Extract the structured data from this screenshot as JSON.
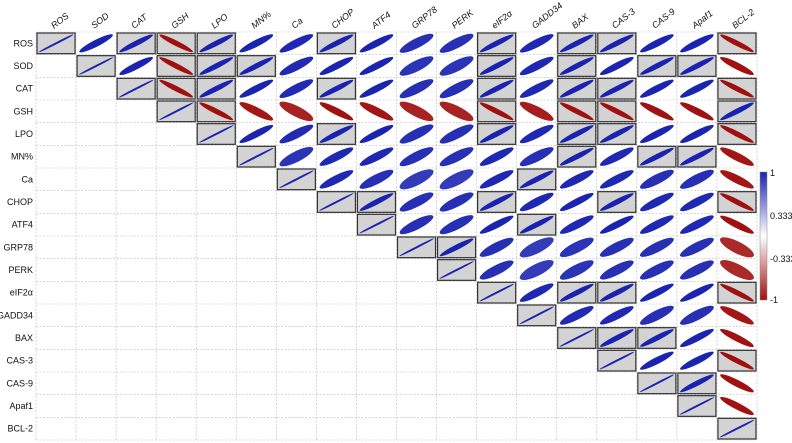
{
  "chart_data": {
    "type": "heatmap",
    "title": "",
    "variables": [
      "ROS",
      "SOD",
      "CAT",
      "GSH",
      "LPO",
      "MN%",
      "Ca",
      "CHOP",
      "ATF4",
      "GRP78",
      "PERK",
      "eIF2α",
      "GADD34",
      "BAX",
      "CAS-3",
      "CAS-9",
      "Apaf1",
      "BCL-2"
    ],
    "cells": [
      {
        "row": "ROS",
        "col": "ROS",
        "r": 1,
        "boxed": true
      },
      {
        "row": "ROS",
        "col": "SOD",
        "r": 0.95,
        "boxed": false
      },
      {
        "row": "ROS",
        "col": "CAT",
        "r": 0.97,
        "boxed": true
      },
      {
        "row": "ROS",
        "col": "GSH",
        "r": -0.97,
        "boxed": true
      },
      {
        "row": "ROS",
        "col": "LPO",
        "r": 0.97,
        "boxed": true
      },
      {
        "row": "ROS",
        "col": "MN%",
        "r": 0.95,
        "boxed": false
      },
      {
        "row": "ROS",
        "col": "Ca",
        "r": 0.93,
        "boxed": false
      },
      {
        "row": "ROS",
        "col": "CHOP",
        "r": 0.97,
        "boxed": true
      },
      {
        "row": "ROS",
        "col": "ATF4",
        "r": 0.95,
        "boxed": false
      },
      {
        "row": "ROS",
        "col": "GRP78",
        "r": 0.9,
        "boxed": false
      },
      {
        "row": "ROS",
        "col": "PERK",
        "r": 0.9,
        "boxed": false
      },
      {
        "row": "ROS",
        "col": "eIF2α",
        "r": 0.97,
        "boxed": true
      },
      {
        "row": "ROS",
        "col": "GADD34",
        "r": 0.93,
        "boxed": false
      },
      {
        "row": "ROS",
        "col": "BAX",
        "r": 0.97,
        "boxed": true
      },
      {
        "row": "ROS",
        "col": "CAS-3",
        "r": 0.97,
        "boxed": true
      },
      {
        "row": "ROS",
        "col": "CAS-9",
        "r": 0.95,
        "boxed": false
      },
      {
        "row": "ROS",
        "col": "Apaf1",
        "r": 0.95,
        "boxed": false
      },
      {
        "row": "ROS",
        "col": "BCL-2",
        "r": -0.97,
        "boxed": true
      },
      {
        "row": "SOD",
        "col": "SOD",
        "r": 1,
        "boxed": true
      },
      {
        "row": "SOD",
        "col": "CAT",
        "r": 0.95,
        "boxed": false
      },
      {
        "row": "SOD",
        "col": "GSH",
        "r": -0.97,
        "boxed": true
      },
      {
        "row": "SOD",
        "col": "LPO",
        "r": 0.97,
        "boxed": true
      },
      {
        "row": "SOD",
        "col": "MN%",
        "r": 0.97,
        "boxed": true
      },
      {
        "row": "SOD",
        "col": "Ca",
        "r": 0.92,
        "boxed": false
      },
      {
        "row": "SOD",
        "col": "CHOP",
        "r": 0.95,
        "boxed": false
      },
      {
        "row": "SOD",
        "col": "ATF4",
        "r": 0.95,
        "boxed": false
      },
      {
        "row": "SOD",
        "col": "GRP78",
        "r": 0.88,
        "boxed": false
      },
      {
        "row": "SOD",
        "col": "PERK",
        "r": 0.88,
        "boxed": false
      },
      {
        "row": "SOD",
        "col": "eIF2α",
        "r": 0.97,
        "boxed": true
      },
      {
        "row": "SOD",
        "col": "GADD34",
        "r": 0.93,
        "boxed": false
      },
      {
        "row": "SOD",
        "col": "BAX",
        "r": 0.97,
        "boxed": true
      },
      {
        "row": "SOD",
        "col": "CAS-3",
        "r": 0.95,
        "boxed": false
      },
      {
        "row": "SOD",
        "col": "CAS-9",
        "r": 0.97,
        "boxed": true
      },
      {
        "row": "SOD",
        "col": "Apaf1",
        "r": 0.97,
        "boxed": true
      },
      {
        "row": "SOD",
        "col": "BCL-2",
        "r": -0.95,
        "boxed": false
      },
      {
        "row": "CAT",
        "col": "CAT",
        "r": 1,
        "boxed": true
      },
      {
        "row": "CAT",
        "col": "GSH",
        "r": -0.97,
        "boxed": true
      },
      {
        "row": "CAT",
        "col": "LPO",
        "r": 0.97,
        "boxed": true
      },
      {
        "row": "CAT",
        "col": "MN%",
        "r": 0.95,
        "boxed": false
      },
      {
        "row": "CAT",
        "col": "Ca",
        "r": 0.92,
        "boxed": false
      },
      {
        "row": "CAT",
        "col": "CHOP",
        "r": 0.97,
        "boxed": true
      },
      {
        "row": "CAT",
        "col": "ATF4",
        "r": 0.95,
        "boxed": false
      },
      {
        "row": "CAT",
        "col": "GRP78",
        "r": 0.9,
        "boxed": false
      },
      {
        "row": "CAT",
        "col": "PERK",
        "r": 0.9,
        "boxed": false
      },
      {
        "row": "CAT",
        "col": "eIF2α",
        "r": 0.97,
        "boxed": true
      },
      {
        "row": "CAT",
        "col": "GADD34",
        "r": 0.93,
        "boxed": false
      },
      {
        "row": "CAT",
        "col": "BAX",
        "r": 0.97,
        "boxed": true
      },
      {
        "row": "CAT",
        "col": "CAS-3",
        "r": 0.97,
        "boxed": true
      },
      {
        "row": "CAT",
        "col": "CAS-9",
        "r": 0.95,
        "boxed": false
      },
      {
        "row": "CAT",
        "col": "Apaf1",
        "r": 0.95,
        "boxed": false
      },
      {
        "row": "CAT",
        "col": "BCL-2",
        "r": -0.97,
        "boxed": true
      },
      {
        "row": "GSH",
        "col": "GSH",
        "r": 1,
        "boxed": true
      },
      {
        "row": "GSH",
        "col": "LPO",
        "r": -0.97,
        "boxed": true
      },
      {
        "row": "GSH",
        "col": "MN%",
        "r": -0.93,
        "boxed": false
      },
      {
        "row": "GSH",
        "col": "Ca",
        "r": -0.88,
        "boxed": false
      },
      {
        "row": "GSH",
        "col": "CHOP",
        "r": -0.95,
        "boxed": false
      },
      {
        "row": "GSH",
        "col": "ATF4",
        "r": -0.93,
        "boxed": false
      },
      {
        "row": "GSH",
        "col": "GRP78",
        "r": -0.88,
        "boxed": false
      },
      {
        "row": "GSH",
        "col": "PERK",
        "r": -0.88,
        "boxed": false
      },
      {
        "row": "GSH",
        "col": "eIF2α",
        "r": -0.97,
        "boxed": true
      },
      {
        "row": "GSH",
        "col": "GADD34",
        "r": -0.9,
        "boxed": false
      },
      {
        "row": "GSH",
        "col": "BAX",
        "r": -0.97,
        "boxed": true
      },
      {
        "row": "GSH",
        "col": "CAS-3",
        "r": -0.97,
        "boxed": true
      },
      {
        "row": "GSH",
        "col": "CAS-9",
        "r": -0.95,
        "boxed": false
      },
      {
        "row": "GSH",
        "col": "Apaf1",
        "r": -0.95,
        "boxed": false
      },
      {
        "row": "GSH",
        "col": "BCL-2",
        "r": 0.97,
        "boxed": true
      },
      {
        "row": "LPO",
        "col": "LPO",
        "r": 1,
        "boxed": true
      },
      {
        "row": "LPO",
        "col": "MN%",
        "r": 0.95,
        "boxed": false
      },
      {
        "row": "LPO",
        "col": "Ca",
        "r": 0.92,
        "boxed": false
      },
      {
        "row": "LPO",
        "col": "CHOP",
        "r": 0.97,
        "boxed": true
      },
      {
        "row": "LPO",
        "col": "ATF4",
        "r": 0.95,
        "boxed": false
      },
      {
        "row": "LPO",
        "col": "GRP78",
        "r": 0.9,
        "boxed": false
      },
      {
        "row": "LPO",
        "col": "PERK",
        "r": 0.9,
        "boxed": false
      },
      {
        "row": "LPO",
        "col": "eIF2α",
        "r": 0.97,
        "boxed": true
      },
      {
        "row": "LPO",
        "col": "GADD34",
        "r": 0.93,
        "boxed": false
      },
      {
        "row": "LPO",
        "col": "BAX",
        "r": 0.97,
        "boxed": true
      },
      {
        "row": "LPO",
        "col": "CAS-3",
        "r": 0.97,
        "boxed": true
      },
      {
        "row": "LPO",
        "col": "CAS-9",
        "r": 0.95,
        "boxed": false
      },
      {
        "row": "LPO",
        "col": "Apaf1",
        "r": 0.95,
        "boxed": false
      },
      {
        "row": "LPO",
        "col": "BCL-2",
        "r": -0.97,
        "boxed": true
      },
      {
        "row": "MN%",
        "col": "MN%",
        "r": 1,
        "boxed": true
      },
      {
        "row": "MN%",
        "col": "Ca",
        "r": 0.88,
        "boxed": false
      },
      {
        "row": "MN%",
        "col": "CHOP",
        "r": 0.93,
        "boxed": false
      },
      {
        "row": "MN%",
        "col": "ATF4",
        "r": 0.93,
        "boxed": false
      },
      {
        "row": "MN%",
        "col": "GRP78",
        "r": 0.9,
        "boxed": false
      },
      {
        "row": "MN%",
        "col": "PERK",
        "r": 0.9,
        "boxed": false
      },
      {
        "row": "MN%",
        "col": "eIF2α",
        "r": 0.93,
        "boxed": false
      },
      {
        "row": "MN%",
        "col": "GADD34",
        "r": 0.9,
        "boxed": false
      },
      {
        "row": "MN%",
        "col": "BAX",
        "r": 0.97,
        "boxed": true
      },
      {
        "row": "MN%",
        "col": "CAS-3",
        "r": 0.93,
        "boxed": false
      },
      {
        "row": "MN%",
        "col": "CAS-9",
        "r": 0.97,
        "boxed": true
      },
      {
        "row": "MN%",
        "col": "Apaf1",
        "r": 0.97,
        "boxed": true
      },
      {
        "row": "MN%",
        "col": "BCL-2",
        "r": -0.93,
        "boxed": false
      },
      {
        "row": "Ca",
        "col": "Ca",
        "r": 1,
        "boxed": true
      },
      {
        "row": "Ca",
        "col": "CHOP",
        "r": 0.93,
        "boxed": false
      },
      {
        "row": "Ca",
        "col": "ATF4",
        "r": 0.9,
        "boxed": false
      },
      {
        "row": "Ca",
        "col": "GRP78",
        "r": 0.85,
        "boxed": false
      },
      {
        "row": "Ca",
        "col": "PERK",
        "r": 0.85,
        "boxed": false
      },
      {
        "row": "Ca",
        "col": "eIF2α",
        "r": 0.93,
        "boxed": false
      },
      {
        "row": "Ca",
        "col": "GADD34",
        "r": 0.97,
        "boxed": true
      },
      {
        "row": "Ca",
        "col": "BAX",
        "r": 0.93,
        "boxed": false
      },
      {
        "row": "Ca",
        "col": "CAS-3",
        "r": 0.93,
        "boxed": false
      },
      {
        "row": "Ca",
        "col": "CAS-9",
        "r": 0.9,
        "boxed": false
      },
      {
        "row": "Ca",
        "col": "Apaf1",
        "r": 0.9,
        "boxed": false
      },
      {
        "row": "Ca",
        "col": "BCL-2",
        "r": -0.93,
        "boxed": false
      },
      {
        "row": "CHOP",
        "col": "CHOP",
        "r": 1,
        "boxed": true
      },
      {
        "row": "CHOP",
        "col": "ATF4",
        "r": 0.97,
        "boxed": true
      },
      {
        "row": "CHOP",
        "col": "GRP78",
        "r": 0.9,
        "boxed": false
      },
      {
        "row": "CHOP",
        "col": "PERK",
        "r": 0.9,
        "boxed": false
      },
      {
        "row": "CHOP",
        "col": "eIF2α",
        "r": 0.97,
        "boxed": true
      },
      {
        "row": "CHOP",
        "col": "GADD34",
        "r": 0.93,
        "boxed": false
      },
      {
        "row": "CHOP",
        "col": "BAX",
        "r": 0.95,
        "boxed": false
      },
      {
        "row": "CHOP",
        "col": "CAS-3",
        "r": 0.97,
        "boxed": true
      },
      {
        "row": "CHOP",
        "col": "CAS-9",
        "r": 0.93,
        "boxed": false
      },
      {
        "row": "CHOP",
        "col": "Apaf1",
        "r": 0.93,
        "boxed": false
      },
      {
        "row": "CHOP",
        "col": "BCL-2",
        "r": -0.97,
        "boxed": true
      },
      {
        "row": "ATF4",
        "col": "ATF4",
        "r": 1,
        "boxed": true
      },
      {
        "row": "ATF4",
        "col": "GRP78",
        "r": 0.9,
        "boxed": false
      },
      {
        "row": "ATF4",
        "col": "PERK",
        "r": 0.9,
        "boxed": false
      },
      {
        "row": "ATF4",
        "col": "eIF2α",
        "r": 0.95,
        "boxed": false
      },
      {
        "row": "ATF4",
        "col": "GADD34",
        "r": 0.97,
        "boxed": true
      },
      {
        "row": "ATF4",
        "col": "BAX",
        "r": 0.93,
        "boxed": false
      },
      {
        "row": "ATF4",
        "col": "CAS-3",
        "r": 0.95,
        "boxed": false
      },
      {
        "row": "ATF4",
        "col": "CAS-9",
        "r": 0.93,
        "boxed": false
      },
      {
        "row": "ATF4",
        "col": "Apaf1",
        "r": 0.93,
        "boxed": false
      },
      {
        "row": "ATF4",
        "col": "BCL-2",
        "r": -0.95,
        "boxed": false
      },
      {
        "row": "GRP78",
        "col": "GRP78",
        "r": 1,
        "boxed": true
      },
      {
        "row": "GRP78",
        "col": "PERK",
        "r": 0.97,
        "boxed": true
      },
      {
        "row": "GRP78",
        "col": "eIF2α",
        "r": 0.9,
        "boxed": false
      },
      {
        "row": "GRP78",
        "col": "GADD34",
        "r": 0.85,
        "boxed": false
      },
      {
        "row": "GRP78",
        "col": "BAX",
        "r": 0.88,
        "boxed": false
      },
      {
        "row": "GRP78",
        "col": "CAS-3",
        "r": 0.9,
        "boxed": false
      },
      {
        "row": "GRP78",
        "col": "CAS-9",
        "r": 0.9,
        "boxed": false
      },
      {
        "row": "GRP78",
        "col": "Apaf1",
        "r": 0.9,
        "boxed": false
      },
      {
        "row": "GRP78",
        "col": "BCL-2",
        "r": -0.85,
        "boxed": false
      },
      {
        "row": "PERK",
        "col": "PERK",
        "r": 1,
        "boxed": true
      },
      {
        "row": "PERK",
        "col": "eIF2α",
        "r": 0.9,
        "boxed": false
      },
      {
        "row": "PERK",
        "col": "GADD34",
        "r": 0.85,
        "boxed": false
      },
      {
        "row": "PERK",
        "col": "BAX",
        "r": 0.88,
        "boxed": false
      },
      {
        "row": "PERK",
        "col": "CAS-3",
        "r": 0.9,
        "boxed": false
      },
      {
        "row": "PERK",
        "col": "CAS-9",
        "r": 0.9,
        "boxed": false
      },
      {
        "row": "PERK",
        "col": "Apaf1",
        "r": 0.9,
        "boxed": false
      },
      {
        "row": "PERK",
        "col": "BCL-2",
        "r": -0.85,
        "boxed": false
      },
      {
        "row": "eIF2α",
        "col": "eIF2α",
        "r": 1,
        "boxed": true
      },
      {
        "row": "eIF2α",
        "col": "GADD34",
        "r": 0.93,
        "boxed": false
      },
      {
        "row": "eIF2α",
        "col": "BAX",
        "r": 0.97,
        "boxed": true
      },
      {
        "row": "eIF2α",
        "col": "CAS-3",
        "r": 0.97,
        "boxed": true
      },
      {
        "row": "eIF2α",
        "col": "CAS-9",
        "r": 0.95,
        "boxed": false
      },
      {
        "row": "eIF2α",
        "col": "Apaf1",
        "r": 0.95,
        "boxed": false
      },
      {
        "row": "eIF2α",
        "col": "BCL-2",
        "r": -0.97,
        "boxed": true
      },
      {
        "row": "GADD34",
        "col": "GADD34",
        "r": 1,
        "boxed": true
      },
      {
        "row": "GADD34",
        "col": "BAX",
        "r": 0.92,
        "boxed": false
      },
      {
        "row": "GADD34",
        "col": "CAS-3",
        "r": 0.93,
        "boxed": false
      },
      {
        "row": "GADD34",
        "col": "CAS-9",
        "r": 0.9,
        "boxed": false
      },
      {
        "row": "GADD34",
        "col": "Apaf1",
        "r": 0.9,
        "boxed": false
      },
      {
        "row": "GADD34",
        "col": "BCL-2",
        "r": -0.93,
        "boxed": false
      },
      {
        "row": "BAX",
        "col": "BAX",
        "r": 1,
        "boxed": true
      },
      {
        "row": "BAX",
        "col": "CAS-3",
        "r": 0.97,
        "boxed": true
      },
      {
        "row": "BAX",
        "col": "CAS-9",
        "r": 0.97,
        "boxed": true
      },
      {
        "row": "BAX",
        "col": "Apaf1",
        "r": 0.95,
        "boxed": false
      },
      {
        "row": "BAX",
        "col": "BCL-2",
        "r": -0.95,
        "boxed": false
      },
      {
        "row": "CAS-3",
        "col": "CAS-3",
        "r": 1,
        "boxed": true
      },
      {
        "row": "CAS-3",
        "col": "CAS-9",
        "r": 0.95,
        "boxed": false
      },
      {
        "row": "CAS-3",
        "col": "Apaf1",
        "r": 0.95,
        "boxed": false
      },
      {
        "row": "CAS-3",
        "col": "BCL-2",
        "r": -0.97,
        "boxed": true
      },
      {
        "row": "CAS-9",
        "col": "CAS-9",
        "r": 1,
        "boxed": true
      },
      {
        "row": "CAS-9",
        "col": "Apaf1",
        "r": 0.97,
        "boxed": true
      },
      {
        "row": "CAS-9",
        "col": "BCL-2",
        "r": -0.95,
        "boxed": false
      },
      {
        "row": "Apaf1",
        "col": "Apaf1",
        "r": 1,
        "boxed": true
      },
      {
        "row": "Apaf1",
        "col": "BCL-2",
        "r": -0.95,
        "boxed": false
      },
      {
        "row": "BCL-2",
        "col": "BCL-2",
        "r": 1,
        "boxed": true
      }
    ],
    "legend": {
      "position": "right",
      "ticks": [
        "1",
        "0.333",
        "-0.333",
        "-1"
      ],
      "range": [
        -1,
        1
      ]
    },
    "colors": {
      "positive": "#1a23b0",
      "negative": "#a01010",
      "box_fill": "#d3d3d3",
      "grid": "#bdbdbd"
    }
  }
}
